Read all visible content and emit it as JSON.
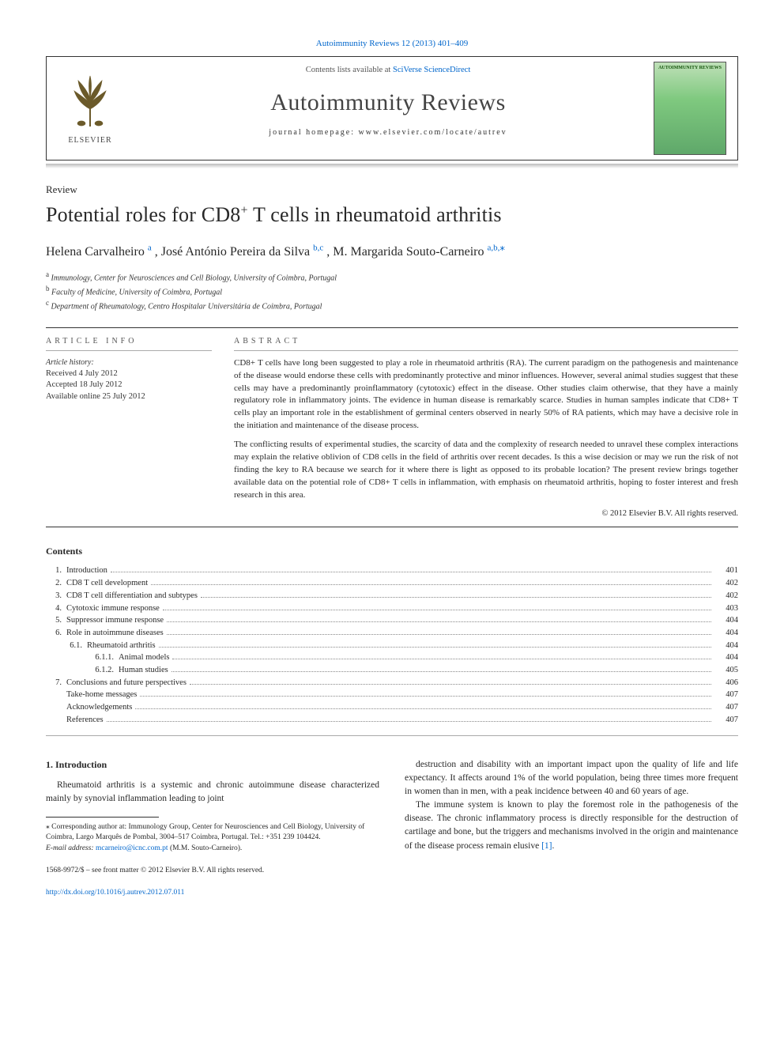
{
  "top_link": {
    "prefix": "Autoimmunity Reviews 12 (2013) 401–409"
  },
  "header": {
    "contents_prefix": "Contents lists available at",
    "contents_link": "SciVerse ScienceDirect",
    "journal": "Autoimmunity Reviews",
    "homepage": "journal homepage: www.elsevier.com/locate/autrev",
    "publisher": "ELSEVIER",
    "cover_label": "AUTOIMMUNITY REVIEWS"
  },
  "article": {
    "type": "Review",
    "title_pre": "Potential roles for CD8",
    "title_sup": "+",
    "title_post": " T cells in rheumatoid arthritis",
    "authors_raw": [
      {
        "name": "Helena Carvalheiro ",
        "aff": "a"
      },
      {
        "name": ", José António Pereira da Silva ",
        "aff": "b,c"
      },
      {
        "name": ", M. Margarida Souto-Carneiro ",
        "aff": "a,b,",
        "star": "⁎"
      }
    ],
    "affiliations": [
      {
        "sup": "a",
        "text": " Immunology, Center for Neurosciences and Cell Biology, University of Coimbra, Portugal"
      },
      {
        "sup": "b",
        "text": " Faculty of Medicine, University of Coimbra, Portugal"
      },
      {
        "sup": "c",
        "text": " Department of Rheumatology, Centro Hospitalar Universitária de Coimbra, Portugal"
      }
    ]
  },
  "info": {
    "label": "ARTICLE INFO",
    "history_label": "Article history:",
    "history": [
      "Received 4 July 2012",
      "Accepted 18 July 2012",
      "Available online 25 July 2012"
    ]
  },
  "abstract": {
    "label": "ABSTRACT",
    "p1": "CD8+ T cells have long been suggested to play a role in rheumatoid arthritis (RA). The current paradigm on the pathogenesis and maintenance of the disease would endorse these cells with predominantly protective and minor influences. However, several animal studies suggest that these cells may have a predominantly proinflammatory (cytotoxic) effect in the disease. Other studies claim otherwise, that they have a mainly regulatory role in inflammatory joints. The evidence in human disease is remarkably scarce. Studies in human samples indicate that CD8+ T cells play an important role in the establishment of germinal centers observed in nearly 50% of RA patients, which may have a decisive role in the initiation and maintenance of the disease process.",
    "p2": "The conflicting results of experimental studies, the scarcity of data and the complexity of research needed to unravel these complex interactions may explain the relative oblivion of CD8 cells in the field of arthritis over recent decades. Is this a wise decision or may we run the risk of not finding the key to RA because we search for it where there is light as opposed to its probable location? The present review brings together available data on the potential role of CD8+ T cells in inflammation, with emphasis on rheumatoid arthritis, hoping to foster interest and fresh research in this area.",
    "copyright": "© 2012 Elsevier B.V. All rights reserved."
  },
  "contents": {
    "heading": "Contents",
    "items": [
      {
        "num": "1.",
        "title": "Introduction",
        "page": "401",
        "indent": 0
      },
      {
        "num": "2.",
        "title": "CD8 T cell development",
        "page": "402",
        "indent": 0
      },
      {
        "num": "3.",
        "title": "CD8 T cell differentiation and subtypes",
        "page": "402",
        "indent": 0
      },
      {
        "num": "4.",
        "title": "Cytotoxic immune response",
        "page": "403",
        "indent": 0
      },
      {
        "num": "5.",
        "title": "Suppressor immune response",
        "page": "404",
        "indent": 0
      },
      {
        "num": "6.",
        "title": "Role in autoimmune diseases",
        "page": "404",
        "indent": 0
      },
      {
        "num": "6.1.",
        "title": "Rheumatoid arthritis",
        "page": "404",
        "indent": 1
      },
      {
        "num": "6.1.1.",
        "title": "Animal models",
        "page": "404",
        "indent": 2
      },
      {
        "num": "6.1.2.",
        "title": "Human studies",
        "page": "405",
        "indent": 2
      },
      {
        "num": "7.",
        "title": "Conclusions and future perspectives",
        "page": "406",
        "indent": 0
      },
      {
        "num": "",
        "title": "Take-home messages",
        "page": "407",
        "indent": 0
      },
      {
        "num": "",
        "title": "Acknowledgements",
        "page": "407",
        "indent": 0
      },
      {
        "num": "",
        "title": "References",
        "page": "407",
        "indent": 0
      }
    ]
  },
  "body": {
    "section_heading": "1. Introduction",
    "left_p1": "Rheumatoid arthritis is a systemic and chronic autoimmune disease characterized mainly by synovial inflammation leading to joint",
    "right_p1": "destruction and disability with an important impact upon the quality of life and life expectancy. It affects around 1% of the world population, being three times more frequent in women than in men, with a peak incidence between 40 and 60 years of age.",
    "right_p2_pre": "The immune system is known to play the foremost role in the pathogenesis of the disease. The chronic inflammatory process is directly responsible for the destruction of cartilage and bone, but the triggers and mechanisms involved in the origin and maintenance of the disease process remain elusive ",
    "right_p2_ref": "[1]",
    "right_p2_post": "."
  },
  "footnotes": {
    "corr": "⁎ Corresponding author at: Immunology Group, Center for Neurosciences and Cell Biology, University of Coimbra, Largo Marquês de Pombal, 3004–517 Coimbra, Portugal. Tel.: +351 239 104424.",
    "email_label": "E-mail address: ",
    "email": "mcarneiro@icnc.com.pt",
    "email_post": " (M.M. Souto-Carneiro).",
    "issn": "1568-9972/$ – see front matter © 2012 Elsevier B.V. All rights reserved.",
    "doi": "http://dx.doi.org/10.1016/j.autrev.2012.07.011"
  },
  "colors": {
    "link": "#0066cc",
    "text": "#282828",
    "rule": "#333333"
  }
}
